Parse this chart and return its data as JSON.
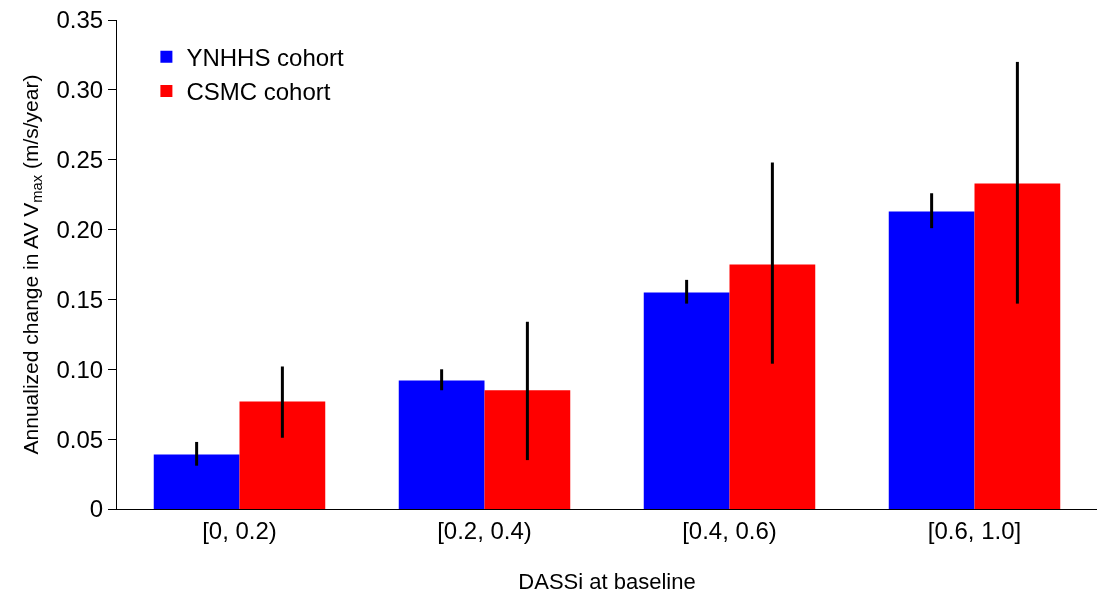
{
  "chart_data": {
    "type": "bar",
    "xlabel": "DASSi at baseline",
    "ylabel": "Annualized change in AV V$_{max}$ (m/s/year)",
    "categories": [
      "[0, 0.2)",
      "[0.2, 0.4)",
      "[0.4, 0.6)",
      "[0.6, 1.0]"
    ],
    "series": [
      {
        "name": "YNHHS cohort",
        "color": "#0000ff",
        "values": [
          0.039,
          0.092,
          0.155,
          0.213
        ],
        "errors": [
          [
            0.031,
            0.048
          ],
          [
            0.085,
            0.1
          ],
          [
            0.147,
            0.164
          ],
          [
            0.201,
            0.226
          ]
        ]
      },
      {
        "name": "CSMC cohort",
        "color": "#ff0000",
        "values": [
          0.077,
          0.085,
          0.175,
          0.233
        ],
        "errors": [
          [
            0.051,
            0.102
          ],
          [
            0.035,
            0.134
          ],
          [
            0.104,
            0.248
          ],
          [
            0.147,
            0.32
          ]
        ]
      }
    ],
    "ylim": [
      0,
      0.35
    ],
    "yticks": [
      {
        "value": 0,
        "label": "0"
      },
      0.05,
      {
        "value": 0.1,
        "label": "0.10"
      },
      0.15,
      {
        "value": 0.2,
        "label": "0.20"
      },
      0.25,
      {
        "value": 0.3,
        "label": "0.30"
      },
      0.35
    ],
    "grid": false,
    "legend": "top left"
  }
}
